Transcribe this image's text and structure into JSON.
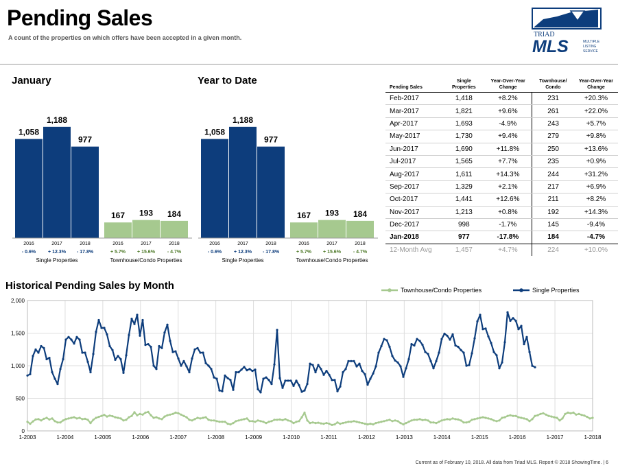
{
  "header": {
    "title": "Pending Sales",
    "subtitle": "A count of the properties on which offers have been accepted in a given month."
  },
  "logo": {
    "line1": "TRIAD",
    "line2": "MLS",
    "tag1": "MULTIPLE",
    "tag2": "LISTING",
    "tag3": "SERVICE"
  },
  "colors": {
    "single": "#0d3d7c",
    "townhouse": "#a6c98f",
    "pos": "#4f7a2a",
    "neg": "#0d3d7c"
  },
  "chart_data": [
    {
      "type": "bar",
      "title": "January",
      "groups": [
        {
          "name": "Single Properties",
          "categories": [
            "2016",
            "2017",
            "2018"
          ],
          "values": [
            1058,
            1188,
            977
          ],
          "changes": [
            "- 0.6%",
            "+ 12.3%",
            "- 17.8%"
          ]
        },
        {
          "name": "Townhouse/Condo Properties",
          "categories": [
            "2016",
            "2017",
            "2018"
          ],
          "values": [
            167,
            193,
            184
          ],
          "changes": [
            "+ 5.7%",
            "+ 15.6%",
            "- 4.7%"
          ]
        }
      ]
    },
    {
      "type": "bar",
      "title": "Year to Date",
      "groups": [
        {
          "name": "Single Properties",
          "categories": [
            "2016",
            "2017",
            "2018"
          ],
          "values": [
            1058,
            1188,
            977
          ],
          "changes": [
            "- 0.6%",
            "+ 12.3%",
            "- 17.8%"
          ]
        },
        {
          "name": "Townhouse/Condo Properties",
          "categories": [
            "2016",
            "2017",
            "2018"
          ],
          "values": [
            167,
            193,
            184
          ],
          "changes": [
            "+ 5.7%",
            "+ 15.6%",
            "- 4.7%"
          ]
        }
      ]
    },
    {
      "type": "table",
      "columns": [
        "Pending Sales",
        "Single Properties",
        "Year-Over-Year Change",
        "Townhouse/ Condo",
        "Year-Over-Year Change"
      ],
      "rows": [
        [
          "Feb-2017",
          "1,418",
          "+8.2%",
          "231",
          "+20.3%"
        ],
        [
          "Mar-2017",
          "1,821",
          "+9.6%",
          "261",
          "+22.0%"
        ],
        [
          "Apr-2017",
          "1,693",
          "-4.9%",
          "243",
          "+5.7%"
        ],
        [
          "May-2017",
          "1,730",
          "+9.4%",
          "279",
          "+9.8%"
        ],
        [
          "Jun-2017",
          "1,690",
          "+11.8%",
          "250",
          "+13.6%"
        ],
        [
          "Jul-2017",
          "1,565",
          "+7.7%",
          "235",
          "+0.9%"
        ],
        [
          "Aug-2017",
          "1,611",
          "+14.3%",
          "244",
          "+31.2%"
        ],
        [
          "Sep-2017",
          "1,329",
          "+2.1%",
          "217",
          "+6.9%"
        ],
        [
          "Oct-2017",
          "1,441",
          "+12.6%",
          "211",
          "+8.2%"
        ],
        [
          "Nov-2017",
          "1,213",
          "+0.8%",
          "192",
          "+14.3%"
        ],
        [
          "Dec-2017",
          "998",
          "-1.7%",
          "145",
          "-9.4%"
        ],
        [
          "Jan-2018",
          "977",
          "-17.8%",
          "184",
          "-4.7%"
        ]
      ],
      "avg": [
        "12-Month Avg",
        "1,457",
        "+4.7%",
        "224",
        "+10.0%"
      ]
    },
    {
      "type": "line",
      "title": "Historical Pending Sales by Month",
      "ylim": [
        0,
        2000
      ],
      "yticks": [
        0,
        500,
        1000,
        1500,
        2000
      ],
      "xticks": [
        "1-2003",
        "1-2004",
        "1-2005",
        "1-2006",
        "1-2007",
        "1-2008",
        "1-2009",
        "1-2010",
        "1-2011",
        "1-2012",
        "1-2013",
        "1-2014",
        "1-2015",
        "1-2016",
        "1-2017",
        "1-2018"
      ],
      "legend": "top-right",
      "series": [
        {
          "name": "Townhouse/Condo Properties",
          "values": [
            140,
            110,
            145,
            175,
            180,
            160,
            185,
            200,
            175,
            190,
            150,
            130,
            130,
            160,
            180,
            190,
            200,
            210,
            190,
            200,
            180,
            185,
            170,
            120,
            170,
            200,
            215,
            230,
            245,
            220,
            235,
            225,
            210,
            200,
            190,
            160,
            170,
            210,
            230,
            285,
            240,
            260,
            250,
            280,
            290,
            240,
            200,
            210,
            190,
            180,
            220,
            240,
            250,
            260,
            280,
            270,
            250,
            230,
            210,
            170,
            160,
            180,
            200,
            190,
            200,
            210,
            170,
            160,
            160,
            150,
            140,
            140,
            140,
            110,
            100,
            120,
            150,
            160,
            170,
            180,
            190,
            150,
            150,
            140,
            160,
            150,
            140,
            120,
            140,
            150,
            170,
            170,
            175,
            165,
            180,
            160,
            150,
            120,
            140,
            150,
            210,
            280,
            160,
            120,
            130,
            120,
            125,
            115,
            110,
            120,
            110,
            90,
            100,
            130,
            110,
            120,
            130,
            140,
            140,
            150,
            140,
            130,
            120,
            110,
            100,
            110,
            100,
            120,
            130,
            140,
            150,
            160,
            170,
            150,
            160,
            150,
            120,
            100,
            120,
            140,
            160,
            170,
            170,
            180,
            165,
            170,
            160,
            130,
            130,
            120,
            140,
            160,
            170,
            180,
            175,
            190,
            180,
            175,
            160,
            130,
            130,
            140,
            170,
            180,
            190,
            200,
            210,
            200,
            190,
            180,
            160,
            150,
            160,
            200,
            210,
            230,
            240,
            230,
            230,
            210,
            200,
            190,
            180,
            150,
            180,
            230,
            240,
            260,
            270,
            250,
            230,
            220,
            210,
            200,
            160,
            190,
            260,
            280,
            270,
            280,
            250,
            260,
            245,
            235,
            215,
            190,
            200
          ]
        },
        {
          "name": "Single Properties",
          "values": [
            850,
            870,
            1150,
            1250,
            1200,
            1300,
            1270,
            1100,
            1120,
            900,
            800,
            720,
            950,
            1100,
            1400,
            1440,
            1400,
            1340,
            1440,
            1400,
            1200,
            1200,
            1060,
            900,
            1180,
            1520,
            1700,
            1580,
            1580,
            1480,
            1300,
            1240,
            1090,
            1150,
            1100,
            890,
            1160,
            1470,
            1720,
            1640,
            1780,
            1460,
            1700,
            1320,
            1330,
            1290,
            1000,
            950,
            1300,
            1270,
            1510,
            1630,
            1380,
            1210,
            1220,
            1110,
            1000,
            1070,
            990,
            900,
            1110,
            1250,
            1270,
            1200,
            1200,
            1040,
            1000,
            950,
            820,
            800,
            620,
            610,
            850,
            810,
            780,
            630,
            900,
            900,
            940,
            980,
            930,
            950,
            920,
            940,
            640,
            590,
            800,
            820,
            780,
            720,
            1020,
            1550,
            810,
            660,
            770,
            770,
            770,
            690,
            770,
            700,
            600,
            620,
            720,
            1030,
            1010,
            900,
            1010,
            950,
            860,
            920,
            860,
            780,
            780,
            610,
            680,
            900,
            950,
            1070,
            1070,
            1070,
            990,
            1030,
            920,
            870,
            710,
            800,
            880,
            990,
            1200,
            1300,
            1410,
            1390,
            1290,
            1150,
            1080,
            1050,
            990,
            830,
            960,
            1100,
            1330,
            1310,
            1410,
            1380,
            1320,
            1210,
            1180,
            1070,
            960,
            1070,
            1200,
            1410,
            1490,
            1460,
            1400,
            1480,
            1310,
            1290,
            1240,
            1200,
            1000,
            1010,
            1190,
            1420,
            1680,
            1780,
            1560,
            1570,
            1450,
            1350,
            1210,
            1160,
            960,
            1050,
            1360,
            1820,
            1690,
            1730,
            1690,
            1560,
            1610,
            1330,
            1440,
            1210,
            998,
            977
          ]
        }
      ]
    }
  ],
  "footer": "Current as of February 10, 2018. All data from Triad MLS. Report © 2018 ShowingTime.  |  6"
}
